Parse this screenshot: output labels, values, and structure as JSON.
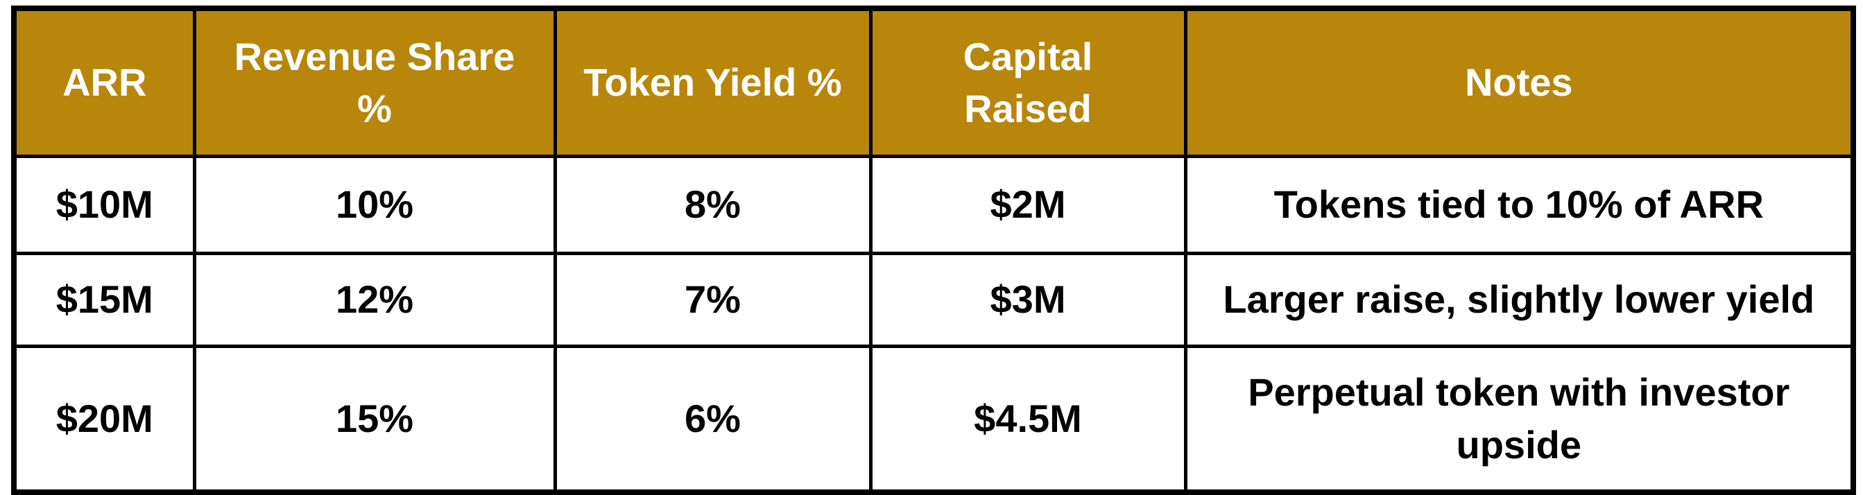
{
  "table": {
    "accent_color": "#B8860B",
    "border_color": "#000000",
    "header_text_color": "#FFFFFF",
    "body_text_color": "#000000",
    "columns": [
      {
        "key": "arr",
        "label": "ARR"
      },
      {
        "key": "revenue_share",
        "label": "Revenue Share\n%"
      },
      {
        "key": "token_yield",
        "label": "Token Yield %"
      },
      {
        "key": "capital_raised",
        "label": "Capital\nRaised"
      },
      {
        "key": "notes",
        "label": "Notes"
      }
    ],
    "rows": [
      {
        "arr": "$10M",
        "revenue_share": "10%",
        "token_yield": "8%",
        "capital_raised": "$2M",
        "notes": "Tokens tied to 10% of ARR"
      },
      {
        "arr": "$15M",
        "revenue_share": "12%",
        "token_yield": "7%",
        "capital_raised": "$3M",
        "notes": "Larger raise, slightly lower yield"
      },
      {
        "arr": "$20M",
        "revenue_share": "15%",
        "token_yield": "6%",
        "capital_raised": "$4.5M",
        "notes": "Perpetual token with investor upside"
      }
    ]
  },
  "chart_data": {
    "type": "table",
    "columns": [
      "ARR",
      "Revenue Share %",
      "Token Yield %",
      "Capital Raised",
      "Notes"
    ],
    "rows": [
      [
        "$10M",
        "10%",
        "8%",
        "$2M",
        "Tokens tied to 10% of ARR"
      ],
      [
        "$15M",
        "12%",
        "7%",
        "$3M",
        "Larger raise, slightly lower yield"
      ],
      [
        "$20M",
        "15%",
        "6%",
        "$4.5M",
        "Perpetual token with investor upside"
      ]
    ],
    "notes_numeric": {
      "arr_musd": [
        10,
        15,
        20
      ],
      "revenue_share_pct": [
        10,
        12,
        15
      ],
      "token_yield_pct": [
        8,
        7,
        6
      ],
      "capital_raised_musd": [
        2,
        3,
        4.5
      ]
    },
    "header_background": "#B8860B",
    "header_text_color": "#FFFFFF",
    "grid": "on"
  }
}
